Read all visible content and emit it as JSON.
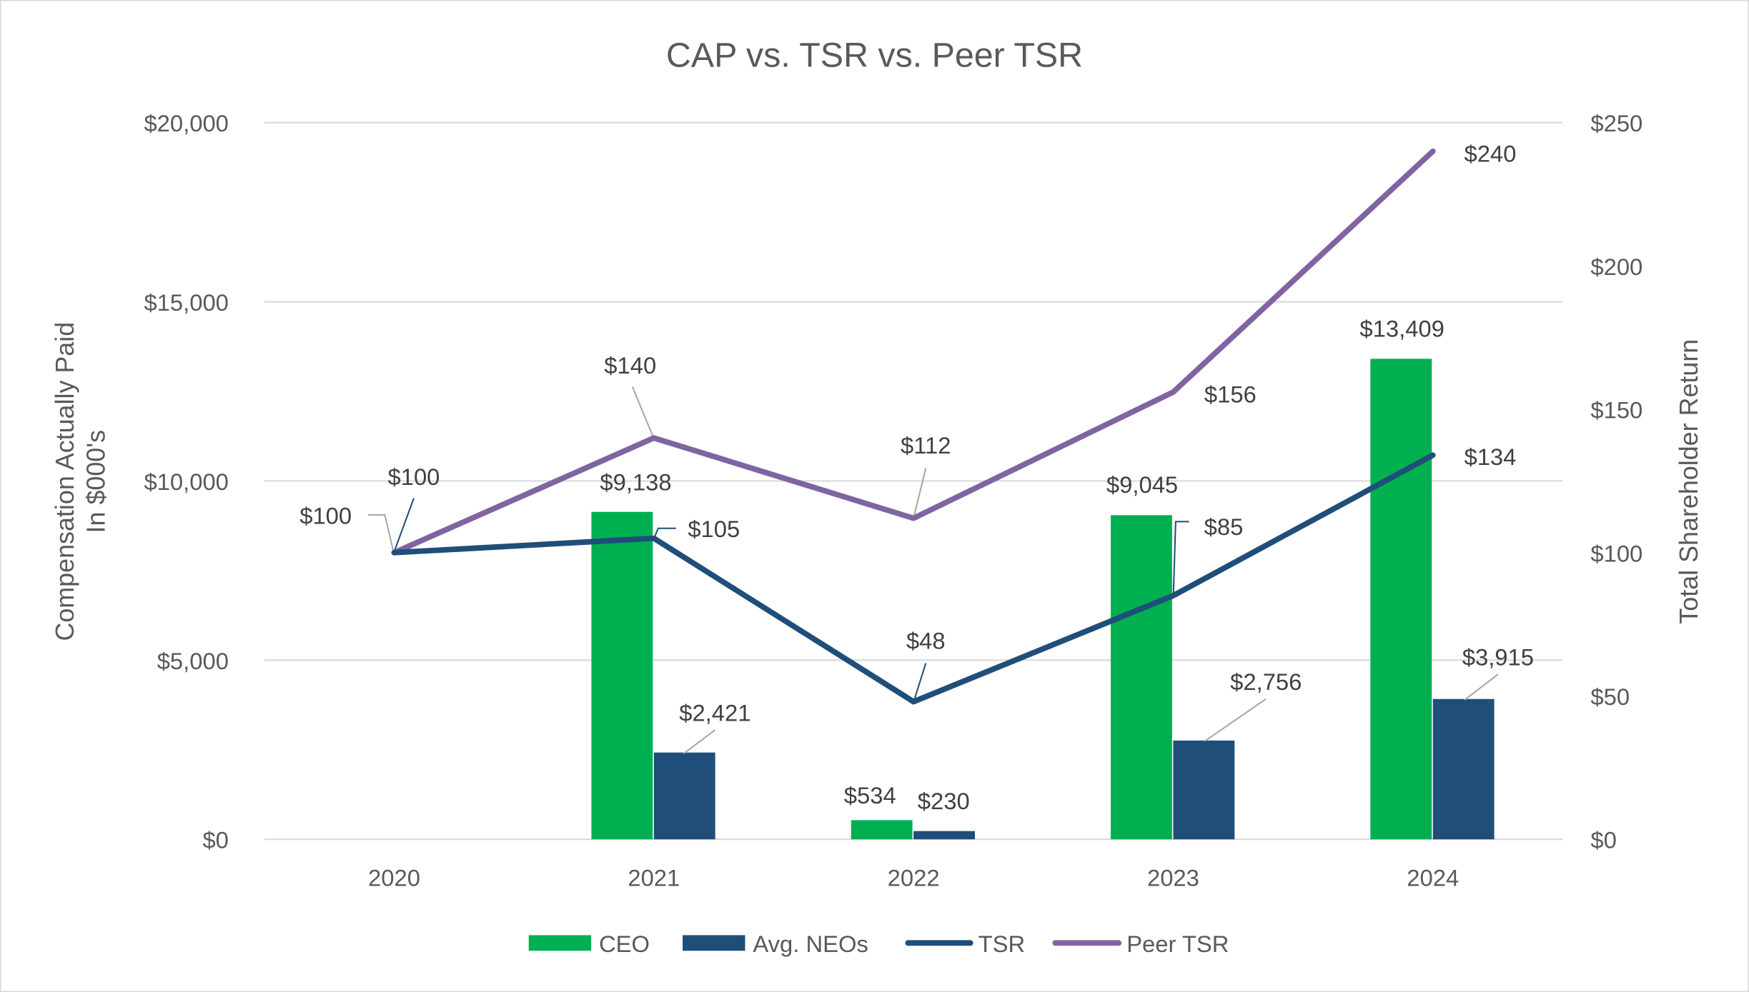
{
  "chart_data": {
    "type": "bar",
    "title": "CAP vs. TSR vs. Peer TSR",
    "ylabel": "Compensation Actually Paid In $000's",
    "ylabel_lines": [
      "Compensation Actually Paid",
      "In $000's"
    ],
    "y2label": "Total Shareholder Return",
    "categories": [
      "2020",
      "2021",
      "2022",
      "2023",
      "2024"
    ],
    "ylim": [
      0,
      20000
    ],
    "y2lim": [
      0,
      250
    ],
    "yticks": [
      "$0",
      "$5,000",
      "$10,000",
      "$15,000",
      "$20,000"
    ],
    "y2ticks": [
      "$0",
      "$50",
      "$100",
      "$150",
      "$200",
      "$250"
    ],
    "grid": true,
    "legend_position": "bottom",
    "series": [
      {
        "name": "CEO",
        "type": "bar",
        "axis": "left",
        "color": "#00B050",
        "values": [
          null,
          9138,
          534,
          9045,
          13409
        ],
        "labels": [
          "",
          "$9,138",
          "$534",
          "$9,045",
          "$13,409"
        ]
      },
      {
        "name": "Avg. NEOs",
        "type": "bar",
        "axis": "left",
        "color": "#1F4E79",
        "values": [
          null,
          2421,
          230,
          2756,
          3915
        ],
        "labels": [
          "",
          "$2,421",
          "$230",
          "$2,756",
          "$3,915"
        ]
      },
      {
        "name": "TSR",
        "type": "line",
        "axis": "right",
        "color": "#1F4E79",
        "values": [
          100,
          105,
          48,
          85,
          134
        ],
        "labels": [
          "$100",
          "$105",
          "$48",
          "$85",
          "$134"
        ]
      },
      {
        "name": "Peer TSR",
        "type": "line",
        "axis": "right",
        "color": "#8064A2",
        "values": [
          100,
          140,
          112,
          156,
          240
        ],
        "labels": [
          "$100",
          "$140",
          "$112",
          "$156",
          "$240"
        ]
      }
    ]
  }
}
